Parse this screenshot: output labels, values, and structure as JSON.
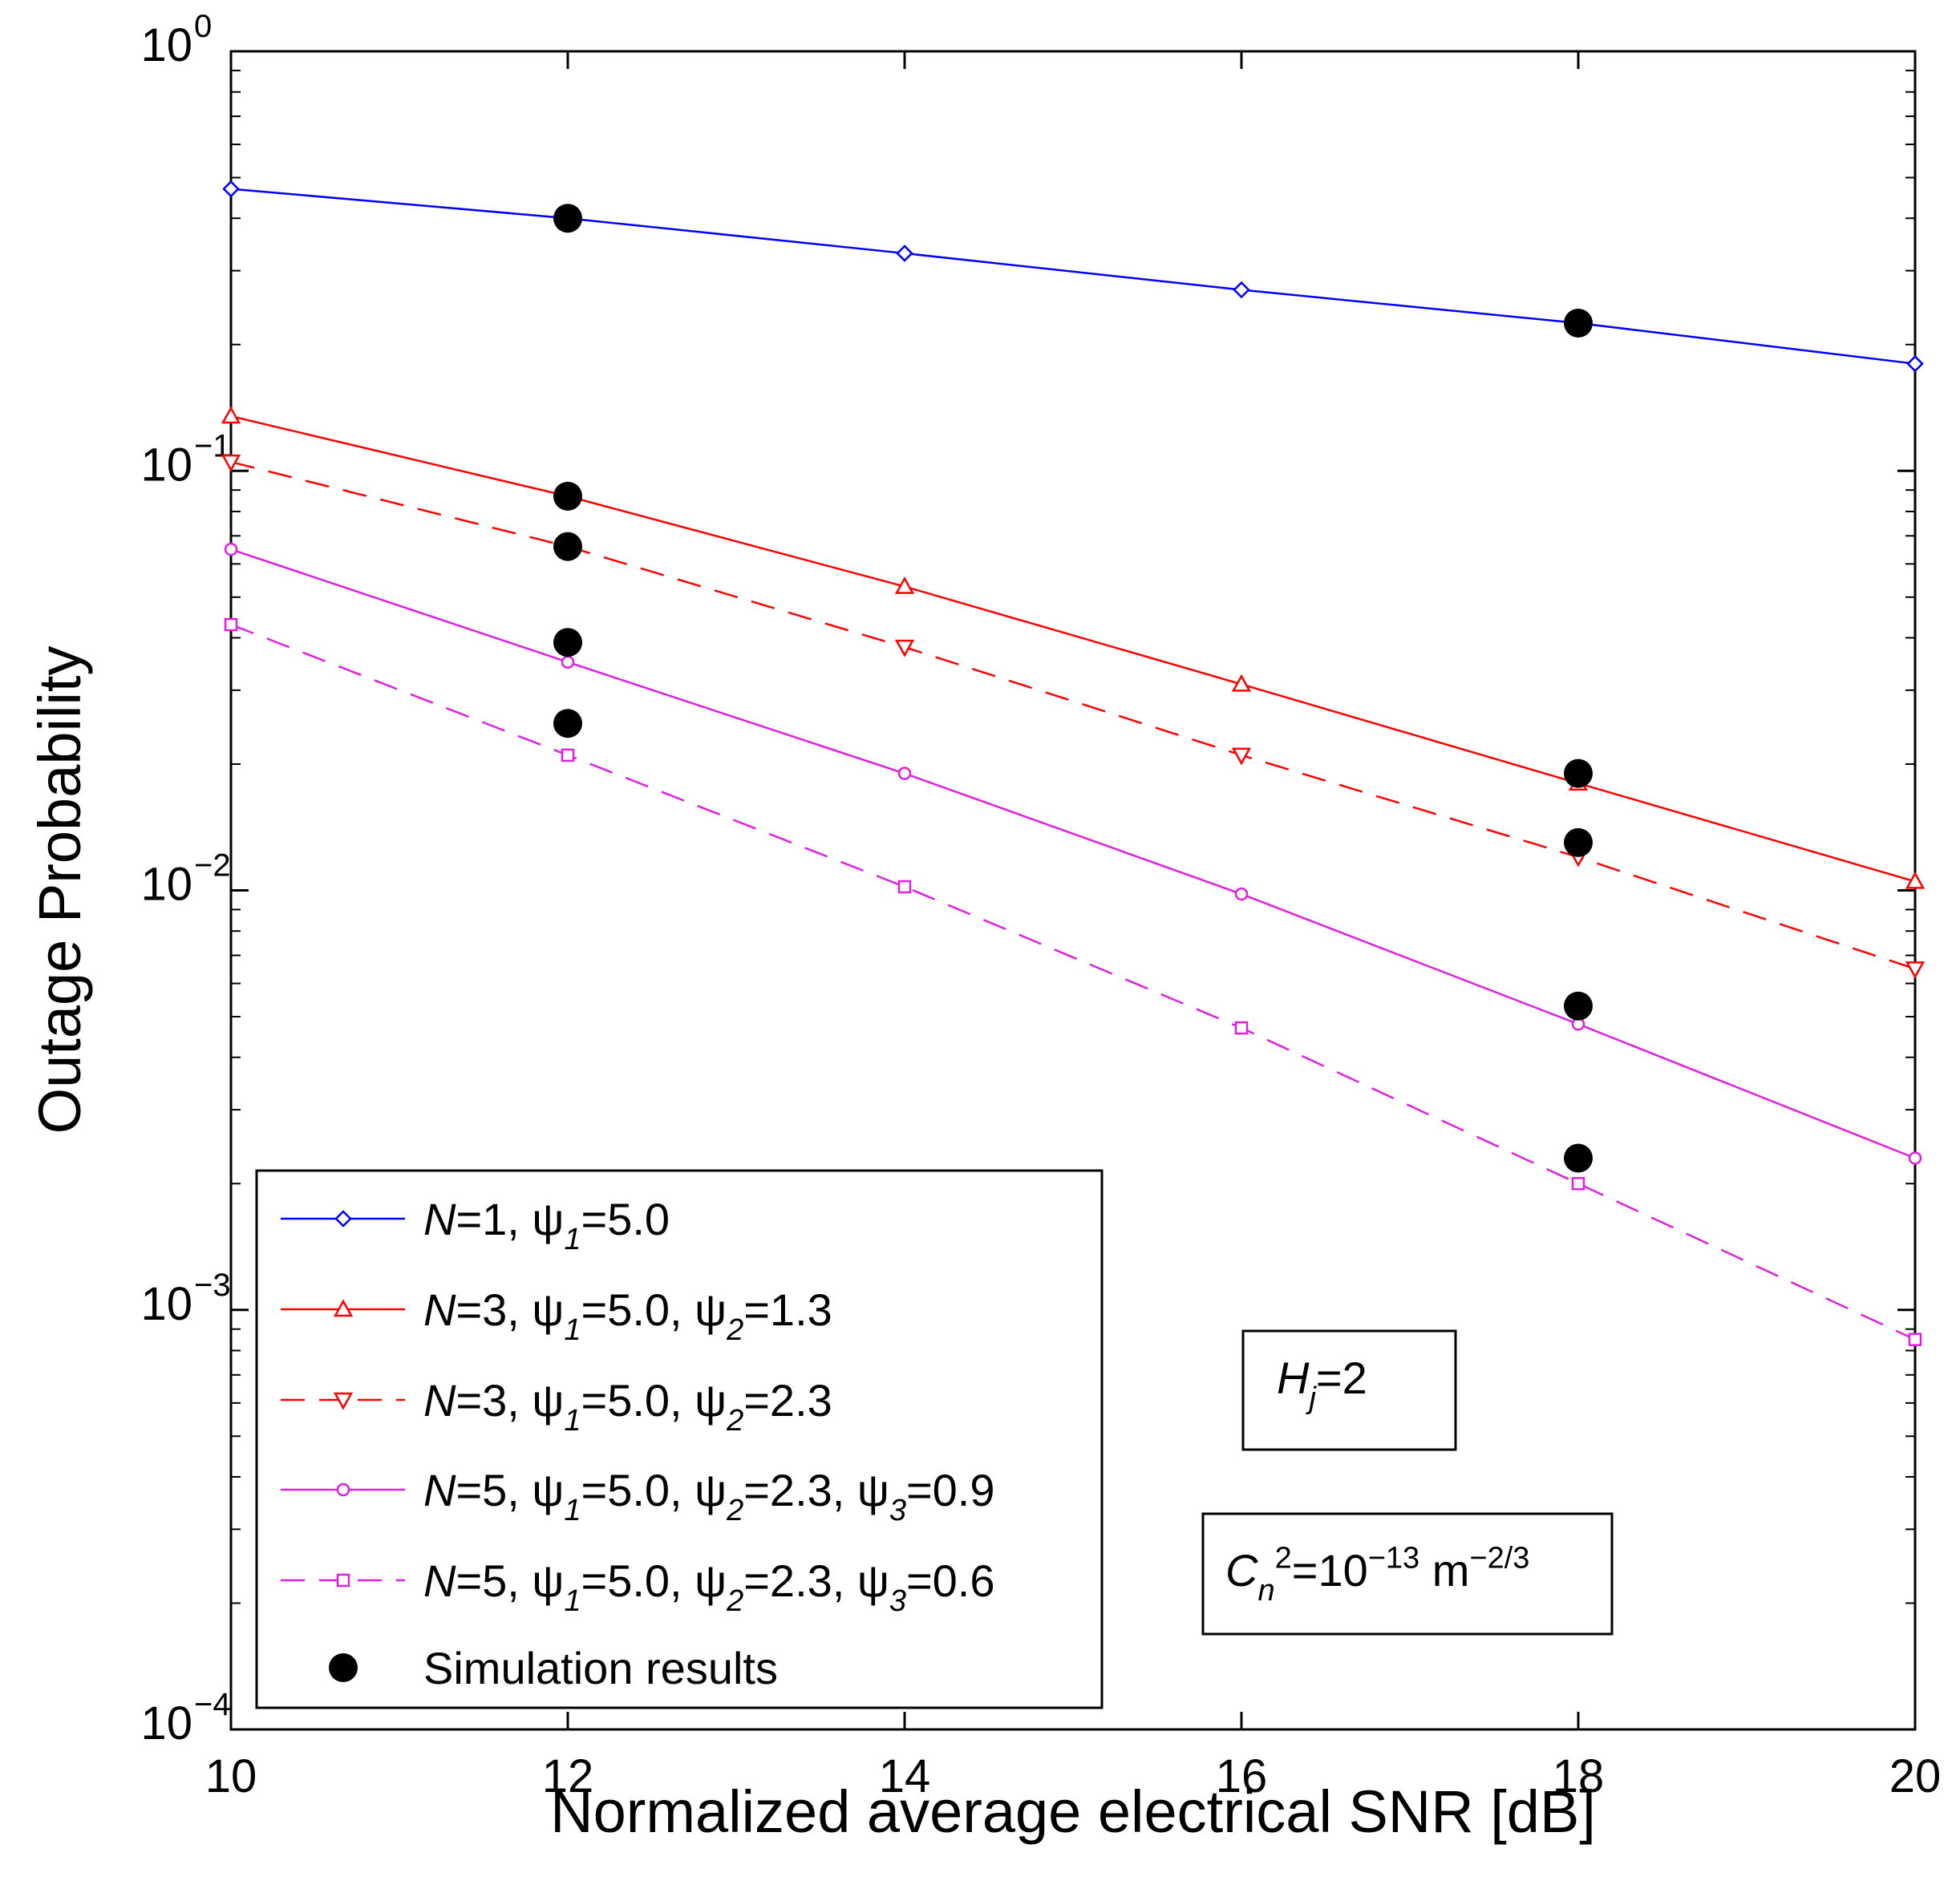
{
  "chart_data": {
    "type": "line",
    "xlabel": "Normalized average electrical SNR [dB]",
    "ylabel": "Outage Probability",
    "xlim": [
      10,
      20
    ],
    "ylim": [
      0.0001,
      1
    ],
    "yscale": "log",
    "grid": false,
    "xticks": [
      10,
      12,
      14,
      16,
      18,
      20
    ],
    "x_tick_labels": [
      "10",
      "12",
      "14",
      "16",
      "18",
      "20"
    ],
    "yticks": [
      {
        "value": 1,
        "base": "10",
        "exp": "0"
      },
      {
        "value": 0.1,
        "base": "10",
        "exp": "−1"
      },
      {
        "value": 0.01,
        "base": "10",
        "exp": "−2"
      },
      {
        "value": 0.001,
        "base": "10",
        "exp": "−3"
      },
      {
        "value": 0.0001,
        "base": "10",
        "exp": "−4"
      }
    ],
    "x": [
      10,
      12,
      14,
      16,
      18,
      20
    ],
    "series": [
      {
        "name": "N=1, ψ1=5.0",
        "color": "#0000ff",
        "dash": "solid",
        "marker": "diamond",
        "values": [
          0.47,
          0.4,
          0.33,
          0.27,
          0.225,
          0.18
        ],
        "legend_parts": [
          {
            "t": "N",
            "italic": true
          },
          {
            "t": "=1, ψ"
          },
          {
            "t": "1",
            "sub": true,
            "italic": true
          },
          {
            "t": "=5.0"
          }
        ]
      },
      {
        "name": "N=3, ψ1=5.0, ψ2=1.3",
        "color": "#ff0000",
        "dash": "solid",
        "marker": "triangle-up",
        "values": [
          0.135,
          0.087,
          0.053,
          0.031,
          0.018,
          0.0105
        ],
        "legend_parts": [
          {
            "t": "N",
            "italic": true
          },
          {
            "t": "=3, ψ"
          },
          {
            "t": "1",
            "sub": true,
            "italic": true
          },
          {
            "t": "=5.0, ψ"
          },
          {
            "t": "2",
            "sub": true,
            "italic": true
          },
          {
            "t": "=1.3"
          }
        ]
      },
      {
        "name": "N=3, ψ1=5.0, ψ2=2.3",
        "color": "#ff0000",
        "dash": "dashed",
        "marker": "triangle-down",
        "values": [
          0.105,
          0.066,
          0.038,
          0.021,
          0.012,
          0.0065
        ],
        "legend_parts": [
          {
            "t": "N",
            "italic": true
          },
          {
            "t": "=3, ψ"
          },
          {
            "t": "1",
            "sub": true,
            "italic": true
          },
          {
            "t": "=5.0, ψ"
          },
          {
            "t": "2",
            "sub": true,
            "italic": true
          },
          {
            "t": "=2.3"
          }
        ]
      },
      {
        "name": "N=5, ψ1=5.0, ψ2=2.3, ψ3=0.9",
        "color": "#e020e0",
        "dash": "solid",
        "marker": "circle",
        "values": [
          0.065,
          0.035,
          0.019,
          0.0098,
          0.0048,
          0.0023
        ],
        "legend_parts": [
          {
            "t": "N",
            "italic": true
          },
          {
            "t": "=5, ψ"
          },
          {
            "t": "1",
            "sub": true,
            "italic": true
          },
          {
            "t": "=5.0, ψ"
          },
          {
            "t": "2",
            "sub": true,
            "italic": true
          },
          {
            "t": "=2.3, ψ"
          },
          {
            "t": "3",
            "sub": true,
            "italic": true
          },
          {
            "t": "=0.9"
          }
        ]
      },
      {
        "name": "N=5, ψ1=5.0, ψ2=2.3, ψ3=0.6",
        "color": "#e020e0",
        "dash": "dashed",
        "marker": "square",
        "values": [
          0.043,
          0.021,
          0.0102,
          0.0047,
          0.002,
          0.00085
        ],
        "legend_parts": [
          {
            "t": "N",
            "italic": true
          },
          {
            "t": "=5, ψ"
          },
          {
            "t": "1",
            "sub": true,
            "italic": true
          },
          {
            "t": "=5.0, ψ"
          },
          {
            "t": "2",
            "sub": true,
            "italic": true
          },
          {
            "t": "=2.3, ψ"
          },
          {
            "t": "3",
            "sub": true,
            "italic": true
          },
          {
            "t": "=0.6"
          }
        ]
      }
    ],
    "simulation": {
      "name": "Simulation results",
      "color": "#000000",
      "marker": "filled-circle",
      "points": [
        {
          "x": 12,
          "y": 0.4
        },
        {
          "x": 18,
          "y": 0.225
        },
        {
          "x": 12,
          "y": 0.087
        },
        {
          "x": 18,
          "y": 0.019
        },
        {
          "x": 12,
          "y": 0.066
        },
        {
          "x": 18,
          "y": 0.013
        },
        {
          "x": 12,
          "y": 0.039
        },
        {
          "x": 18,
          "y": 0.0053
        },
        {
          "x": 12,
          "y": 0.025
        },
        {
          "x": 18,
          "y": 0.0023
        }
      ]
    },
    "legend_position": "lower-left",
    "annotations": [
      {
        "name": "hj-annotation",
        "text_parts": [
          {
            "t": "H",
            "italic": true
          },
          {
            "t": "j",
            "sub": true,
            "italic": true
          },
          {
            "t": "=2"
          }
        ]
      },
      {
        "name": "cn2-annotation",
        "text_parts": [
          {
            "t": "C",
            "italic": true
          },
          {
            "t": "n",
            "sub": true,
            "italic": true
          },
          {
            "t": "2",
            "sup": true
          },
          {
            "t": "=10"
          },
          {
            "t": "−13",
            "sup": true
          },
          {
            "t": " m"
          },
          {
            "t": "−2/3",
            "sup": true
          }
        ]
      }
    ]
  }
}
